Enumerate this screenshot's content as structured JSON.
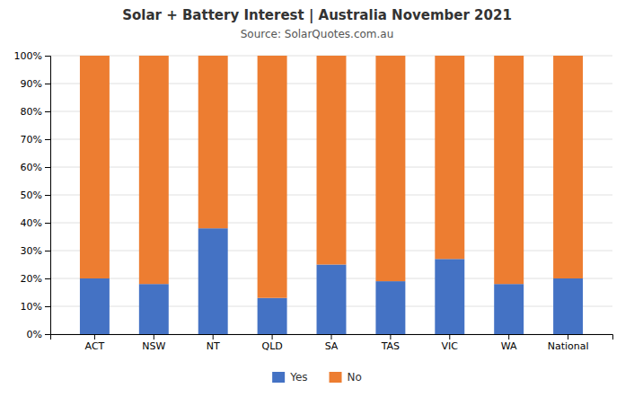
{
  "chart_data": {
    "type": "bar",
    "stacked": true,
    "title": "Solar + Battery Interest  |  Australia November 2021",
    "subtitle": "Source: SolarQuotes.com.au",
    "categories": [
      "ACT",
      "NSW",
      "NT",
      "QLD",
      "SA",
      "TAS",
      "VIC",
      "WA",
      "National"
    ],
    "series": [
      {
        "name": "Yes",
        "color": "#4472C4",
        "values": [
          20,
          18,
          38,
          13,
          25,
          19,
          27,
          18,
          20
        ]
      },
      {
        "name": "No",
        "color": "#ED7D31",
        "values": [
          80,
          82,
          62,
          87,
          75,
          81,
          73,
          82,
          80
        ]
      }
    ],
    "ylim": [
      0,
      100
    ],
    "yticks": [
      {
        "value": 0,
        "label": "0%"
      },
      {
        "value": 10,
        "label": "10%"
      },
      {
        "value": 20,
        "label": "20%"
      },
      {
        "value": 30,
        "label": "30%"
      },
      {
        "value": 40,
        "label": "40%"
      },
      {
        "value": 50,
        "label": "50%"
      },
      {
        "value": 60,
        "label": "60%"
      },
      {
        "value": 70,
        "label": "70%"
      },
      {
        "value": 80,
        "label": "80%"
      },
      {
        "value": 90,
        "label": "90%"
      },
      {
        "value": 100,
        "label": "100%"
      }
    ],
    "grid": true,
    "legend": "bottom"
  }
}
